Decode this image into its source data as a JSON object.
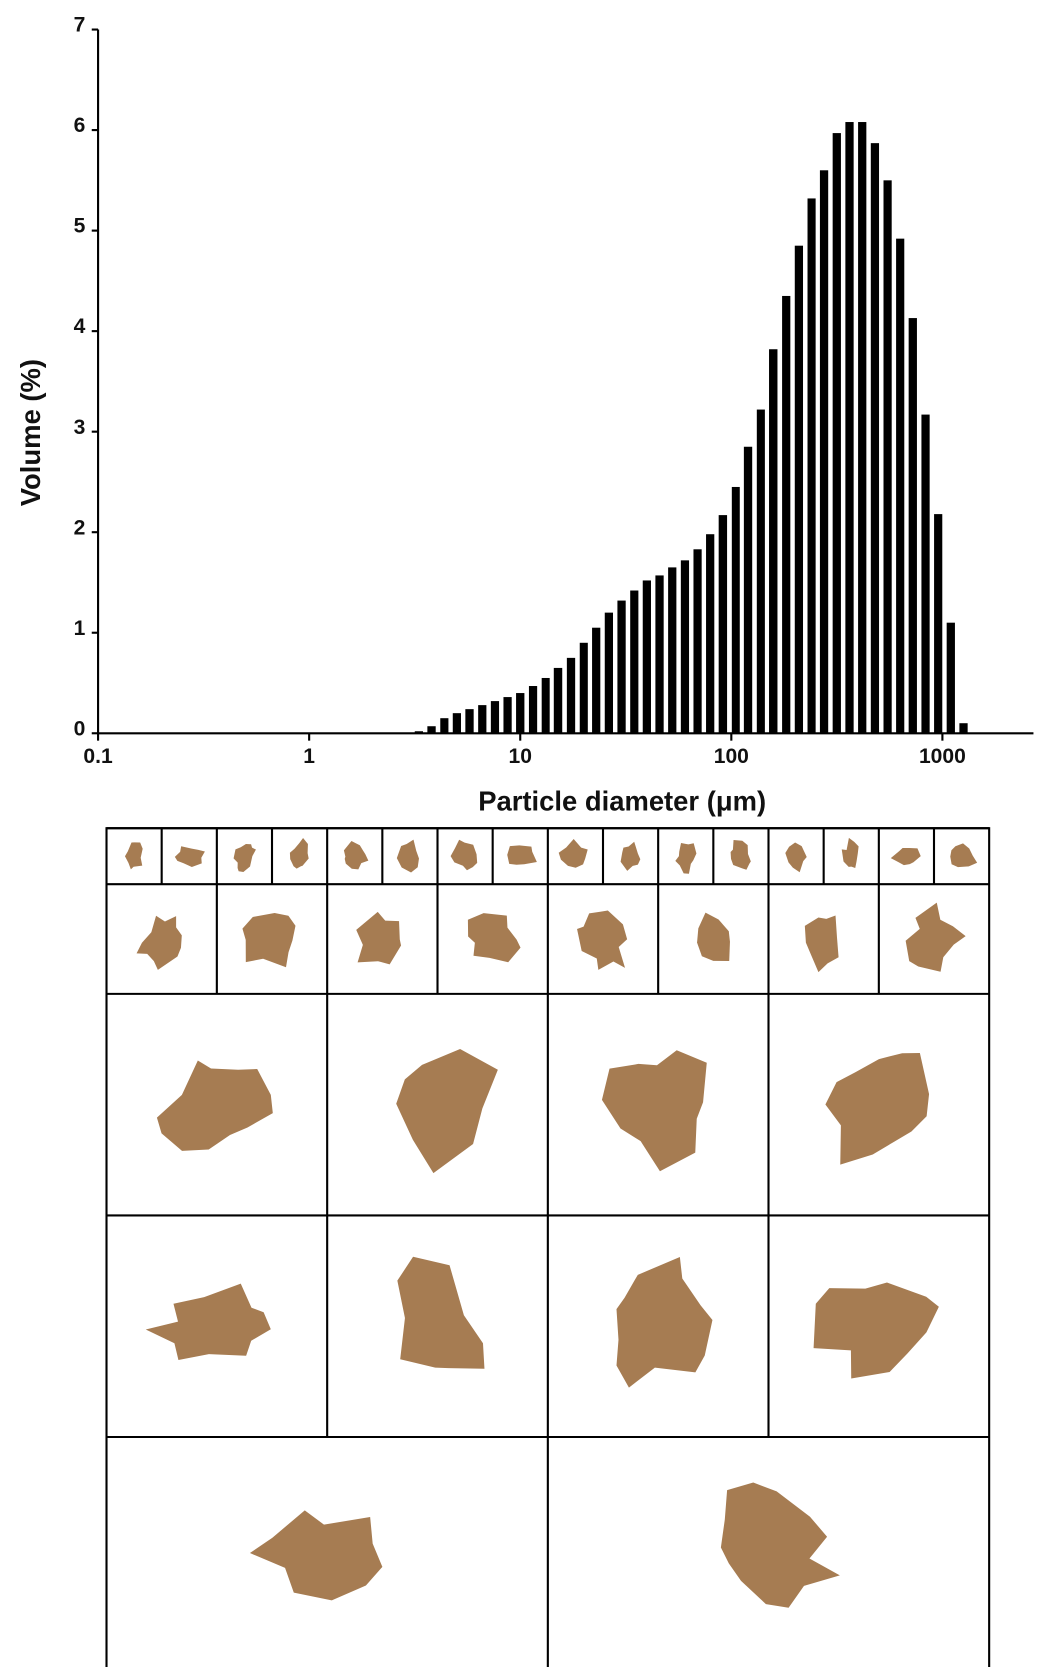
{
  "chart_data": {
    "type": "bar",
    "x_label": "Particle diameter (μm)",
    "y_label": "Volume (%)",
    "x": [
      3.31,
      3.8,
      4.37,
      5.01,
      5.75,
      6.61,
      7.59,
      8.71,
      10.0,
      11.5,
      13.2,
      15.1,
      17.4,
      20.0,
      22.9,
      26.3,
      30.2,
      34.7,
      39.8,
      45.7,
      52.5,
      60.3,
      69.2,
      79.4,
      91.2,
      105,
      120,
      138,
      158,
      182,
      209,
      240,
      275,
      316,
      363,
      417,
      479,
      550,
      631,
      724,
      832,
      955,
      1096,
      1259
    ],
    "values": [
      0.02,
      0.07,
      0.15,
      0.2,
      0.24,
      0.28,
      0.32,
      0.36,
      0.4,
      0.47,
      0.55,
      0.65,
      0.75,
      0.9,
      1.05,
      1.2,
      1.32,
      1.42,
      1.52,
      1.57,
      1.65,
      1.72,
      1.83,
      1.98,
      2.17,
      2.45,
      2.85,
      3.22,
      3.82,
      4.35,
      4.85,
      5.32,
      5.6,
      5.97,
      6.08,
      6.08,
      5.87,
      5.5,
      4.92,
      4.13,
      3.17,
      2.18,
      1.1,
      0.1
    ],
    "color": "#000000",
    "x_log": true,
    "xlim": [
      0.1,
      2700
    ],
    "xticks": [
      {
        "value": 0.1,
        "label": "0.1"
      },
      1,
      10,
      100,
      1000
    ],
    "ylim": [
      0,
      7
    ],
    "yticks": [
      0,
      1,
      2,
      3,
      4,
      5,
      6,
      7
    ]
  }
}
